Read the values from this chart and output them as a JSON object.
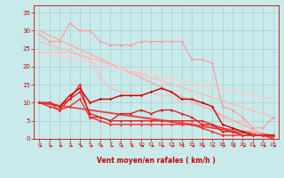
{
  "bg_color": "#c8eaea",
  "grid_color": "#aacccc",
  "xlabel": "Vent moyen/en rafales ( km/h )",
  "xlabel_color": "#cc0000",
  "tick_color": "#cc0000",
  "xlim": [
    -0.5,
    23.5
  ],
  "ylim": [
    0,
    37
  ],
  "yticks": [
    0,
    5,
    10,
    15,
    20,
    25,
    30,
    35
  ],
  "xticks": [
    0,
    1,
    2,
    3,
    4,
    5,
    6,
    7,
    8,
    9,
    10,
    11,
    12,
    13,
    14,
    15,
    16,
    17,
    18,
    19,
    20,
    21,
    22,
    23
  ],
  "lines": [
    {
      "x": [
        0,
        23
      ],
      "y": [
        30,
        0
      ],
      "color": "#ffaaaa",
      "lw": 1.0,
      "marker": null,
      "ms": 0
    },
    {
      "x": [
        0,
        23
      ],
      "y": [
        27,
        6
      ],
      "color": "#ffbbbb",
      "lw": 1.0,
      "marker": null,
      "ms": 0
    },
    {
      "x": [
        0,
        23
      ],
      "y": [
        24,
        11
      ],
      "color": "#ffcccc",
      "lw": 1.0,
      "marker": null,
      "ms": 0
    },
    {
      "x": [
        0,
        23
      ],
      "y": [
        10,
        1
      ],
      "color": "#ee6666",
      "lw": 1.0,
      "marker": null,
      "ms": 0
    },
    {
      "x": [
        0,
        23
      ],
      "y": [
        10,
        0.5
      ],
      "color": "#dd4444",
      "lw": 1.0,
      "marker": null,
      "ms": 0
    },
    {
      "x": [
        0,
        1,
        2,
        3,
        4,
        5,
        6,
        7,
        8,
        9,
        10,
        11,
        12,
        13,
        14,
        15,
        16,
        17,
        18,
        19,
        20,
        21,
        22,
        23
      ],
      "y": [
        29,
        27,
        27,
        32,
        30,
        30,
        27,
        26,
        26,
        26,
        27,
        27,
        27,
        27,
        27,
        22,
        22,
        21,
        9,
        8,
        6,
        3,
        3,
        6
      ],
      "color": "#ff9999",
      "lw": 0.8,
      "marker": "D",
      "ms": 1.5
    },
    {
      "x": [
        0,
        1,
        2,
        3,
        4,
        5,
        6,
        7,
        8,
        9,
        10,
        11,
        12,
        13,
        14,
        15,
        16,
        17,
        18,
        19,
        20,
        21,
        22,
        23
      ],
      "y": [
        24,
        24,
        24,
        24,
        23,
        22,
        17,
        14,
        13,
        13,
        12,
        13,
        12,
        12,
        10,
        10,
        9,
        8,
        6,
        5,
        5,
        2,
        1,
        1
      ],
      "color": "#ffbbbb",
      "lw": 0.8,
      "marker": "D",
      "ms": 1.5
    },
    {
      "x": [
        0,
        1,
        2,
        3,
        4,
        5,
        6,
        7,
        8,
        9,
        10,
        11,
        12,
        13,
        14,
        15,
        16,
        17,
        18,
        19,
        20,
        21,
        22,
        23
      ],
      "y": [
        10,
        9,
        8,
        11,
        15,
        6,
        6,
        5,
        5,
        5,
        5,
        5,
        5,
        5,
        5,
        5,
        5,
        4,
        3,
        2,
        1,
        1,
        1,
        1
      ],
      "color": "#ff2222",
      "lw": 1.0,
      "marker": "D",
      "ms": 1.5
    },
    {
      "x": [
        0,
        1,
        2,
        3,
        4,
        5,
        6,
        7,
        8,
        9,
        10,
        11,
        12,
        13,
        14,
        15,
        16,
        17,
        18,
        19,
        20,
        21,
        22,
        23
      ],
      "y": [
        10,
        10,
        9,
        12,
        14,
        10,
        11,
        11,
        12,
        12,
        12,
        13,
        14,
        13,
        11,
        11,
        10,
        9,
        4,
        3,
        2,
        1,
        1,
        1
      ],
      "color": "#cc0000",
      "lw": 1.0,
      "marker": "D",
      "ms": 1.5
    },
    {
      "x": [
        0,
        1,
        2,
        3,
        4,
        5,
        6,
        7,
        8,
        9,
        10,
        11,
        12,
        13,
        14,
        15,
        16,
        17,
        18,
        19,
        20,
        21,
        22,
        23
      ],
      "y": [
        10,
        10,
        9,
        11,
        13,
        7,
        6,
        5,
        7,
        7,
        8,
        7,
        8,
        8,
        7,
        6,
        4,
        4,
        2,
        2,
        1,
        1,
        1,
        1
      ],
      "color": "#dd2222",
      "lw": 1.0,
      "marker": "D",
      "ms": 1.5
    },
    {
      "x": [
        0,
        1,
        2,
        3,
        4,
        5,
        6,
        7,
        8,
        9,
        10,
        11,
        12,
        13,
        14,
        15,
        16,
        17,
        18,
        19,
        20,
        21,
        22,
        23
      ],
      "y": [
        10,
        10,
        8,
        9,
        11,
        6,
        5,
        4,
        4,
        4,
        4,
        4,
        4,
        4,
        4,
        4,
        3,
        2,
        1,
        1,
        1,
        1,
        1,
        0
      ],
      "color": "#ee3333",
      "lw": 1.0,
      "marker": "D",
      "ms": 1.5
    }
  ],
  "arrow_color": "#cc0000"
}
